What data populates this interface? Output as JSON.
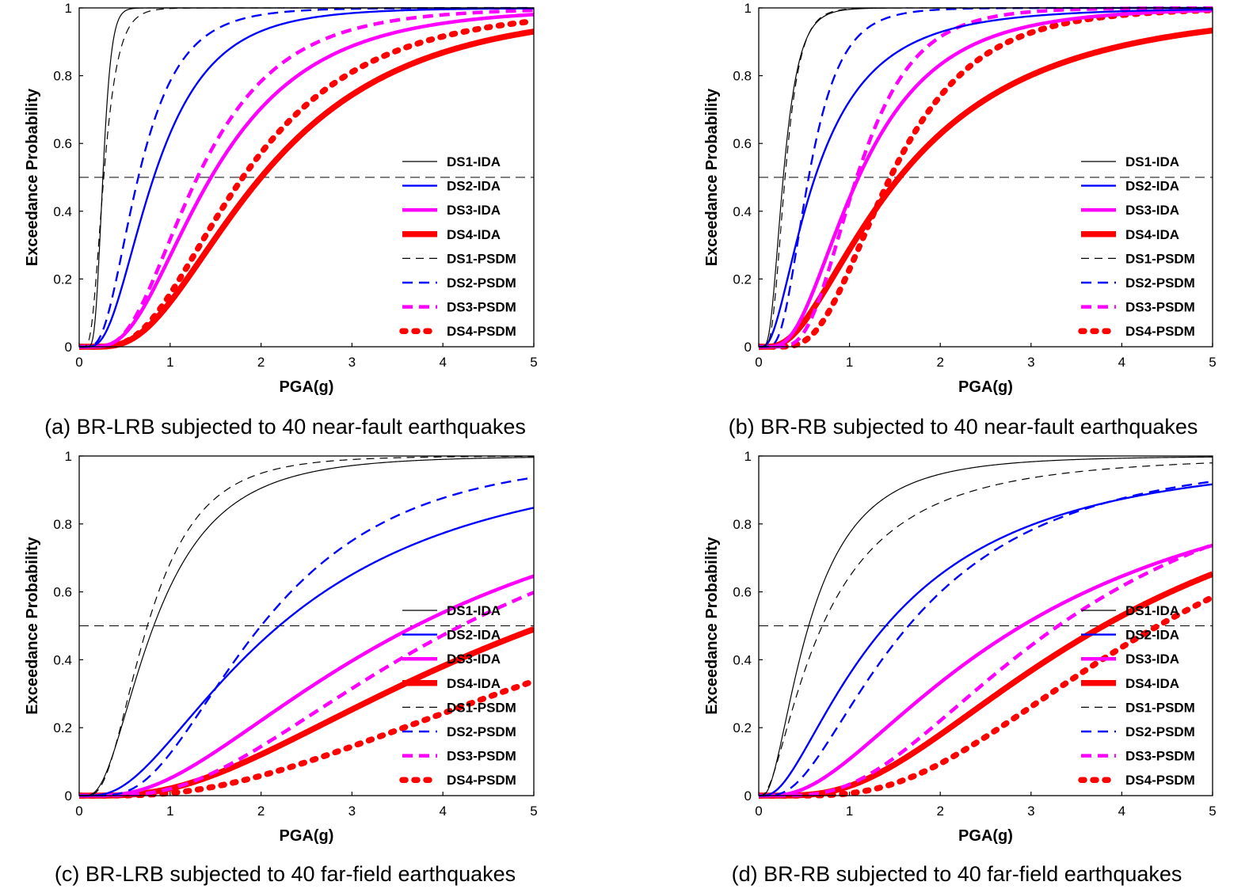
{
  "chart_data": [
    {
      "type": "line",
      "caption": "(a) BR-LRB subjected to 40 near-fault earthquakes",
      "xlabel": "PGA(g)",
      "ylabel": "Exceedance Probability",
      "xlim": [
        0,
        5
      ],
      "ylim": [
        0,
        1
      ],
      "xticks": [
        "0",
        "1",
        "2",
        "3",
        "4",
        "5"
      ],
      "yticks": [
        "0",
        "0.2",
        "0.4",
        "0.6",
        "0.8",
        "1"
      ],
      "reference_line_y": 0.5,
      "legend_position": "lower-right",
      "series": [
        {
          "name": "DS1-IDA",
          "median": 0.26,
          "beta": 0.28
        },
        {
          "name": "DS2-IDA",
          "median": 0.82,
          "beta": 0.6
        },
        {
          "name": "DS3-IDA",
          "median": 1.45,
          "beta": 0.6
        },
        {
          "name": "DS4-IDA",
          "median": 2.0,
          "beta": 0.62
        },
        {
          "name": "DS1-PSDM",
          "median": 0.27,
          "beta": 0.45
        },
        {
          "name": "DS2-PSDM",
          "median": 0.65,
          "beta": 0.55
        },
        {
          "name": "DS3-PSDM",
          "median": 1.3,
          "beta": 0.55
        },
        {
          "name": "DS4-PSDM",
          "median": 1.8,
          "beta": 0.58
        }
      ]
    },
    {
      "type": "line",
      "caption": "(b) BR-RB subjected to 40 near-fault earthquakes",
      "xlabel": "PGA(g)",
      "ylabel": "Exceedance Probability",
      "xlim": [
        0,
        5
      ],
      "ylim": [
        0,
        1
      ],
      "xticks": [
        "0",
        "1",
        "2",
        "3",
        "4",
        "5"
      ],
      "yticks": [
        "0",
        "0.2",
        "0.4",
        "0.6",
        "0.8",
        "1"
      ],
      "reference_line_y": 0.5,
      "legend_position": "lower-right",
      "series": [
        {
          "name": "DS1-IDA",
          "median": 0.27,
          "beta": 0.5
        },
        {
          "name": "DS2-IDA",
          "median": 0.62,
          "beta": 0.8
        },
        {
          "name": "DS3-IDA",
          "median": 1.1,
          "beta": 0.62
        },
        {
          "name": "DS4-IDA",
          "median": 1.55,
          "beta": 0.78
        },
        {
          "name": "DS1-PSDM",
          "median": 0.29,
          "beta": 0.45
        },
        {
          "name": "DS2-PSDM",
          "median": 0.55,
          "beta": 0.5
        },
        {
          "name": "DS3-PSDM",
          "median": 1.08,
          "beta": 0.45
        },
        {
          "name": "DS4-PSDM",
          "median": 1.45,
          "beta": 0.5
        }
      ]
    },
    {
      "type": "line",
      "caption": "(c) BR-LRB subjected to 40 far-field earthquakes",
      "xlabel": "PGA(g)",
      "ylabel": "Exceedance Probability",
      "xlim": [
        0,
        5
      ],
      "ylim": [
        0,
        1
      ],
      "xticks": [
        "0",
        "1",
        "2",
        "3",
        "4",
        "5"
      ],
      "yticks": [
        "0",
        "0.2",
        "0.4",
        "0.6",
        "0.8",
        "1"
      ],
      "reference_line_y": 0.5,
      "legend_position": "lower-right",
      "series": [
        {
          "name": "DS1-IDA",
          "median": 0.82,
          "beta": 0.68
        },
        {
          "name": "DS2-IDA",
          "median": 2.2,
          "beta": 0.8
        },
        {
          "name": "DS3-IDA",
          "median": 3.7,
          "beta": 0.8
        },
        {
          "name": "DS4-IDA",
          "median": 5.1,
          "beta": 0.8
        },
        {
          "name": "DS1-PSDM",
          "median": 0.75,
          "beta": 0.6
        },
        {
          "name": "DS2-PSDM",
          "median": 2.0,
          "beta": 0.6
        },
        {
          "name": "DS3-PSDM",
          "median": 4.2,
          "beta": 0.7
        },
        {
          "name": "DS4-PSDM",
          "median": 7.0,
          "beta": 0.8
        }
      ]
    },
    {
      "type": "line",
      "caption": "(d) BR-RB subjected to 40 far-field earthquakes",
      "xlabel": "PGA(g)",
      "ylabel": "Exceedance Probability",
      "xlim": [
        0,
        5
      ],
      "ylim": [
        0,
        1
      ],
      "xticks": [
        "0",
        "1",
        "2",
        "3",
        "4",
        "5"
      ],
      "yticks": [
        "0",
        "0.2",
        "0.4",
        "0.6",
        "0.8",
        "1"
      ],
      "reference_line_y": 0.5,
      "legend_position": "lower-right",
      "series": [
        {
          "name": "DS1-IDA",
          "median": 0.55,
          "beta": 0.8
        },
        {
          "name": "DS2-IDA",
          "median": 1.4,
          "beta": 0.92
        },
        {
          "name": "DS3-IDA",
          "median": 2.9,
          "beta": 0.86
        },
        {
          "name": "DS4-IDA",
          "median": 3.8,
          "beta": 0.7
        },
        {
          "name": "DS1-PSDM",
          "median": 0.7,
          "beta": 0.96
        },
        {
          "name": "DS2-PSDM",
          "median": 1.65,
          "beta": 0.77
        },
        {
          "name": "DS3-PSDM",
          "median": 3.3,
          "beta": 0.65
        },
        {
          "name": "DS4-PSDM",
          "median": 4.4,
          "beta": 0.6
        }
      ]
    }
  ],
  "series_styles": {
    "DS1": {
      "color": "#000000"
    },
    "DS2": {
      "color": "#0000ff"
    },
    "DS3": {
      "color": "#ff00ff"
    },
    "DS4": {
      "color": "#ff0000"
    }
  }
}
